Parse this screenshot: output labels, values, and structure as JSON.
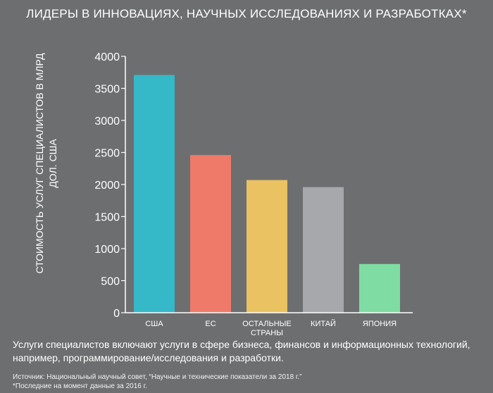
{
  "header": {
    "title": "ЛИДЕРЫ В ИННОВАЦИЯХ, НАУЧНЫХ ИССЛЕДОВАНИЯХ И РАЗРАБОТКАХ*"
  },
  "footer": {
    "note": "Услуги специалистов включают услуги в сфере бизнеса, финансов и информационных технологий, например, программирование/исследования и разработки.",
    "source": "Источник: Национальный научный совет,   “Научные и технические показатели за 2018 г.”",
    "footnote": "*Последние на момент данные за 2016 г."
  },
  "chart_data": {
    "type": "bar",
    "title": "ЛИДЕРЫ В ИННОВАЦИЯХ, НАУЧНЫХ ИССЛЕДОВАНИЯХ И РАЗРАБОТКАХ*",
    "ylabel": "СТОИМОСТЬ УСЛУГ СПЕЦИАЛИСТОВ В МЛРД ДОЛ. США",
    "xlabel": "",
    "categories": [
      "США",
      "ЕС",
      "ОСТАЛЬНЫЕ СТРАНЫ",
      "КИТАЙ",
      "ЯПОНИЯ"
    ],
    "values": [
      3710,
      2460,
      2070,
      1960,
      760
    ],
    "colors": [
      "#35b8c7",
      "#ef7a6a",
      "#eac261",
      "#a6a8ab",
      "#7fdca3"
    ],
    "ylim": [
      0,
      4000
    ],
    "yticks": [
      0,
      500,
      1000,
      1500,
      2000,
      2500,
      3000,
      3500,
      4000
    ],
    "grid": false,
    "legend": "none"
  }
}
